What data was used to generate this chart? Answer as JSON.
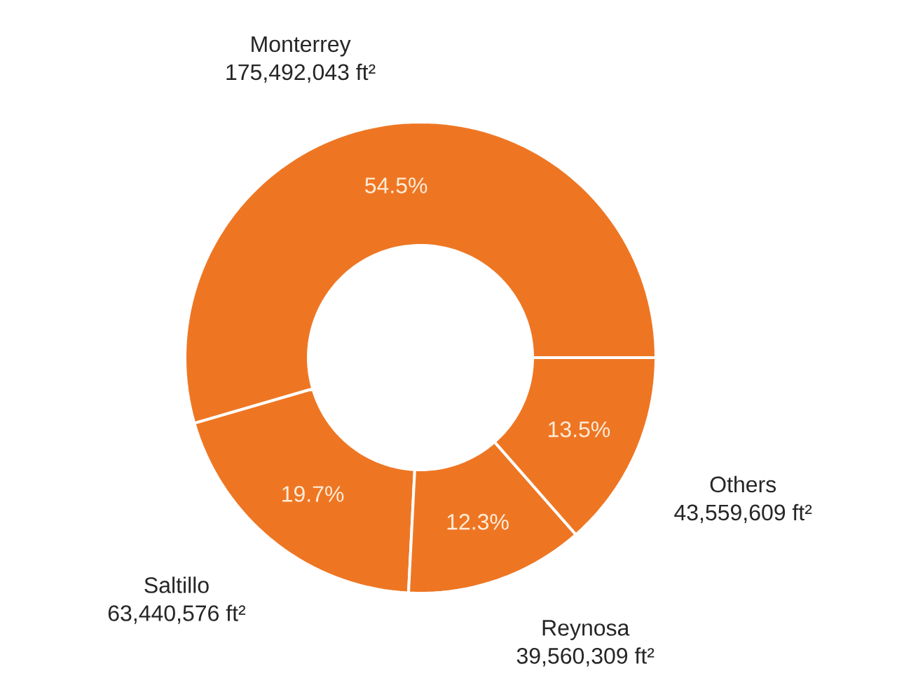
{
  "chart_data": {
    "type": "donut",
    "categories": [
      "Monterrey",
      "Saltillo",
      "Reynosa",
      "Others"
    ],
    "values": [
      175492043,
      63440576,
      39560309,
      43559609
    ],
    "value_labels": [
      "175,492,043 ft²",
      "63,440,576 ft²",
      "39,560,309 ft²",
      "43,559,609 ft²"
    ],
    "colors": [
      "#ee7623",
      "#ee7623",
      "#ee7623",
      "#ee7623"
    ],
    "annotations": [
      "54.5%",
      "19.7%",
      "12.3%",
      "13.5%"
    ]
  }
}
